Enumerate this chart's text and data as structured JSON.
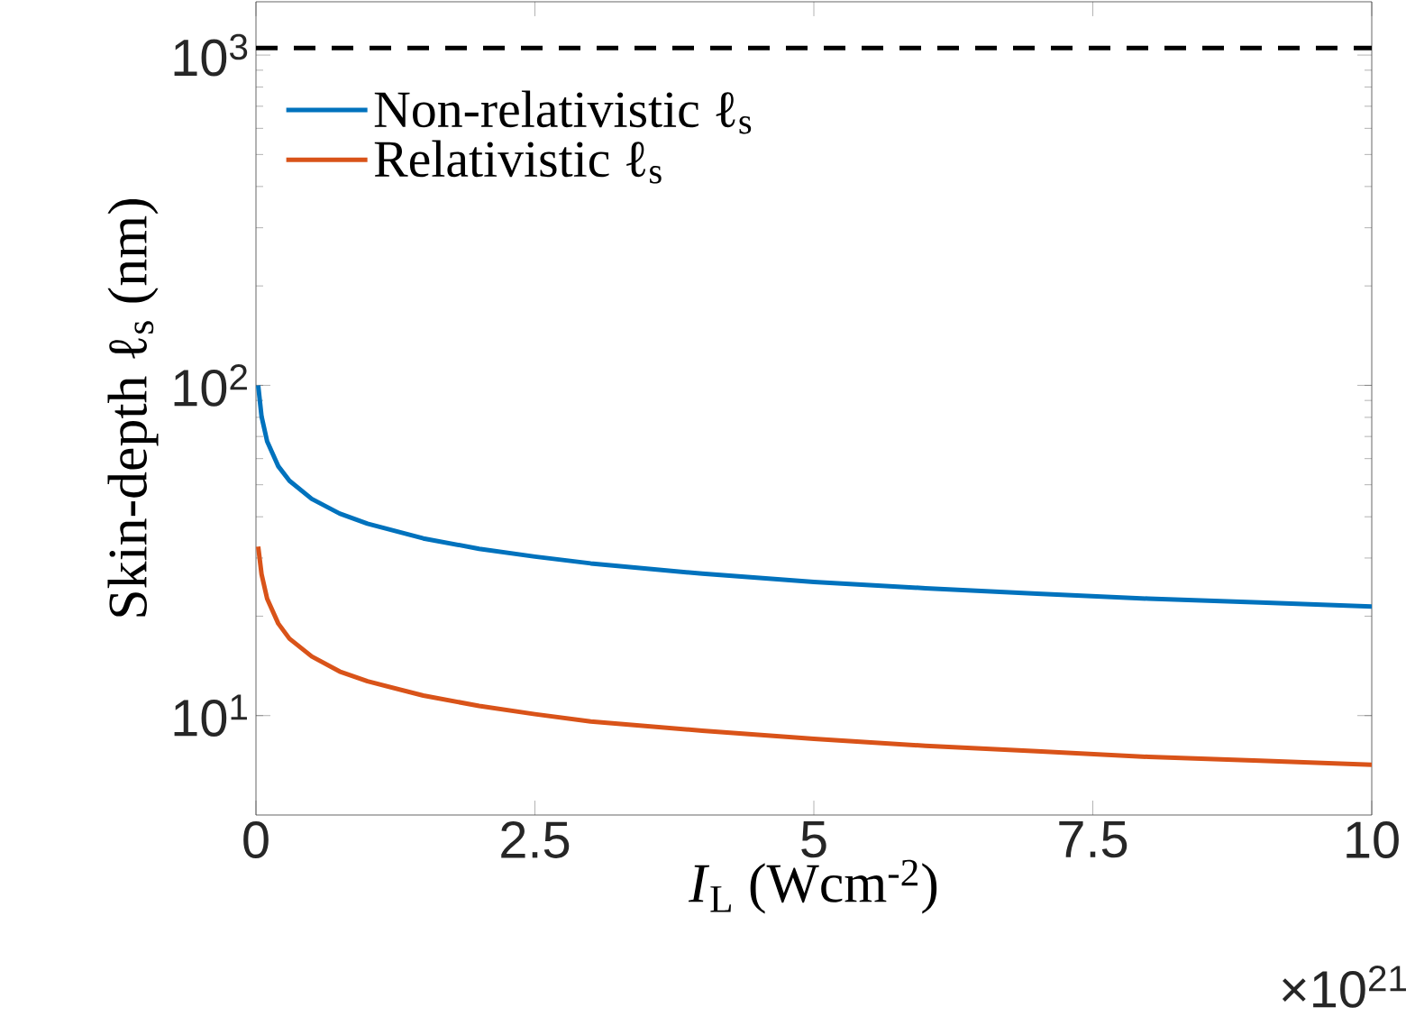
{
  "chart_data": {
    "type": "line",
    "xlabel": "*I*$_{L}$ (Wcm$^{-2}$)",
    "ylabel": "Skin-depth ℓ$_{s}$ (nm)",
    "x": [
      0.02,
      0.05,
      0.1,
      0.2,
      0.3,
      0.5,
      0.75,
      1,
      1.5,
      2,
      2.5,
      3,
      4,
      5,
      6,
      7,
      8,
      9,
      10
    ],
    "series": [
      {
        "name": "Non-relativistic ℓ$_{s}$",
        "color": "#0072bd",
        "values": [
          100,
          80.5,
          67.7,
          56.9,
          51.4,
          45.3,
          40.9,
          38.1,
          34.4,
          32.0,
          30.3,
          28.9,
          26.9,
          25.4,
          24.3,
          23.4,
          22.6,
          22.0,
          21.4
        ]
      },
      {
        "name": "Relativistic ℓ$_{s}$",
        "color": "#d95319",
        "values": [
          32.5,
          26.8,
          22.6,
          19.0,
          17.1,
          15.1,
          13.6,
          12.7,
          11.5,
          10.7,
          10.1,
          9.6,
          9.0,
          8.5,
          8.1,
          7.8,
          7.5,
          7.3,
          7.1
        ]
      }
    ],
    "xlim": [
      0,
      10
    ],
    "xticks": [
      0,
      2.5,
      5,
      7.5,
      10
    ],
    "ylim": [
      5,
      1450
    ],
    "log": "y",
    "yticks": [
      {
        "value": 10,
        "label": "10$^{1}$"
      },
      {
        "value": 100,
        "label": "10$^{2}$"
      },
      {
        "value": 1000,
        "label": "10$^{3}$"
      }
    ],
    "ref_lines": [
      {
        "axis": "y",
        "value": 1050,
        "color": "#000000",
        "line_style": "dashed"
      }
    ],
    "annotations": [
      "×10$^{21}$"
    ],
    "legend": "top left",
    "grid": false,
    "marker": "none",
    "line_style": "solid"
  }
}
